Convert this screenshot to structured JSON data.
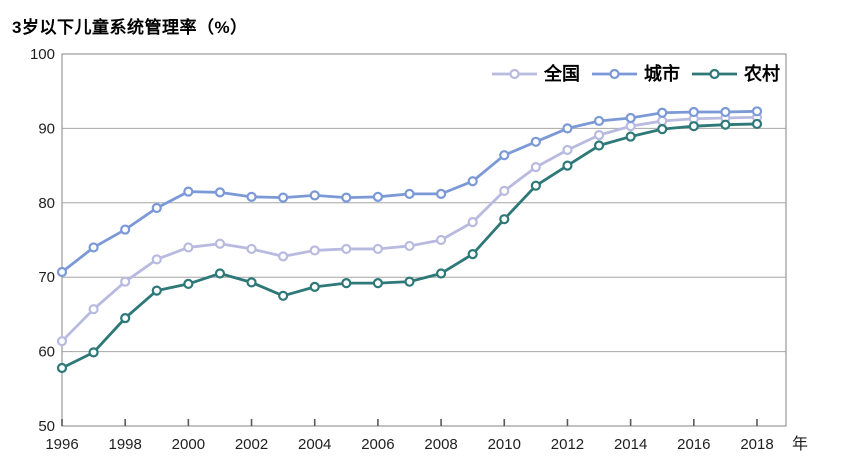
{
  "chart_data": {
    "type": "line",
    "title": "3岁以下儿童系统管理率（%）",
    "x_unit_label": "年",
    "x": [
      1996,
      1997,
      1998,
      1999,
      2000,
      2001,
      2002,
      2003,
      2004,
      2005,
      2006,
      2007,
      2008,
      2009,
      2010,
      2011,
      2012,
      2013,
      2014,
      2015,
      2016,
      2017,
      2018
    ],
    "x_tick_years": [
      1996,
      1998,
      2000,
      2002,
      2004,
      2006,
      2008,
      2010,
      2012,
      2014,
      2016,
      2018
    ],
    "ylim": [
      50,
      100
    ],
    "y_ticks": [
      100,
      90,
      80,
      70,
      60,
      50
    ],
    "grid": "horizontal",
    "legend_position": "top-right-inside",
    "marker": "open-circle",
    "series": [
      {
        "id": "national",
        "name": "全国",
        "color": "#b9badf",
        "values": [
          61.4,
          65.7,
          69.4,
          72.4,
          74.0,
          74.5,
          73.8,
          72.8,
          73.6,
          73.8,
          73.8,
          74.2,
          75.0,
          77.4,
          81.6,
          84.8,
          87.1,
          89.1,
          90.3,
          91.0,
          91.3,
          91.4,
          91.5
        ]
      },
      {
        "id": "urban",
        "name": "城市",
        "color": "#7b99d6",
        "values": [
          70.7,
          74.0,
          76.4,
          79.3,
          81.5,
          81.4,
          80.8,
          80.7,
          81.0,
          80.7,
          80.8,
          81.2,
          81.2,
          82.9,
          86.4,
          88.2,
          90.0,
          91.0,
          91.4,
          92.1,
          92.2,
          92.2,
          92.3
        ]
      },
      {
        "id": "rural",
        "name": "农村",
        "color": "#2e7878",
        "values": [
          57.8,
          59.9,
          64.5,
          68.2,
          69.1,
          70.5,
          69.3,
          67.5,
          68.7,
          69.2,
          69.2,
          69.4,
          70.5,
          73.1,
          77.8,
          82.3,
          85.0,
          87.7,
          88.9,
          89.9,
          90.3,
          90.5,
          90.6
        ]
      }
    ]
  },
  "colors": {
    "grid": "#a6a6a6",
    "border": "#9a9a9a",
    "axis_tick": "#595959",
    "text": "#1f1f1f",
    "background": "#ffffff"
  }
}
